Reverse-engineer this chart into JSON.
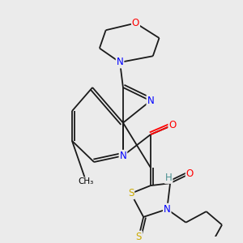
{
  "background_color": "#ebebeb",
  "atoms": {
    "N": "#0000ff",
    "O": "#ff0000",
    "S": "#ccaa00",
    "H": "#4a9090"
  },
  "bond_color": "#1a1a1a",
  "lw": 1.3,
  "fs": 8.5
}
